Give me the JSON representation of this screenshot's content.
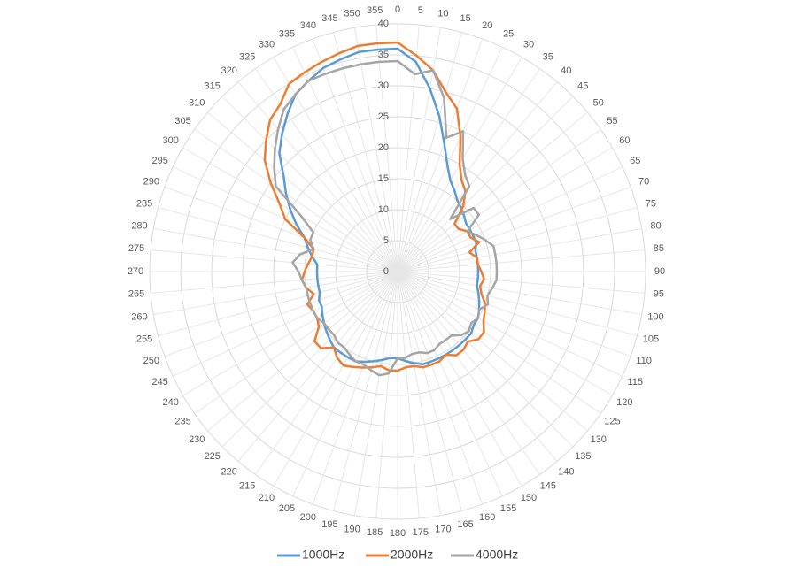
{
  "chart_data": {
    "type": "radar",
    "categories": [
      "0",
      "5",
      "10",
      "15",
      "20",
      "25",
      "30",
      "35",
      "40",
      "45",
      "50",
      "55",
      "60",
      "65",
      "70",
      "75",
      "80",
      "85",
      "90",
      "95",
      "100",
      "105",
      "110",
      "115",
      "120",
      "125",
      "130",
      "135",
      "140",
      "145",
      "150",
      "155",
      "160",
      "165",
      "170",
      "175",
      "180",
      "185",
      "190",
      "195",
      "200",
      "205",
      "210",
      "215",
      "220",
      "225",
      "230",
      "235",
      "240",
      "245",
      "250",
      "255",
      "260",
      "265",
      "270",
      "275",
      "280",
      "285",
      "290",
      "295",
      "300",
      "305",
      "310",
      "315",
      "320",
      "325",
      "330",
      "335",
      "340",
      "345",
      "350",
      "355"
    ],
    "series": [
      {
        "name": "1000Hz",
        "color": "#5b9bd5",
        "values": [
          36,
          34,
          30,
          26,
          22,
          19,
          17,
          16,
          15,
          14.5,
          14,
          13.5,
          13.5,
          13.5,
          13.5,
          13,
          13,
          13,
          13,
          13,
          13,
          13.5,
          14,
          14.5,
          15,
          15,
          15.5,
          15.5,
          15.5,
          15.5,
          15.5,
          15.5,
          15.5,
          15.5,
          15,
          14.5,
          14,
          14,
          14.5,
          15,
          15.5,
          16,
          16,
          16,
          16,
          15.5,
          15,
          14.5,
          14,
          13.5,
          13.5,
          13,
          13,
          13,
          13,
          13,
          14,
          15,
          16,
          18,
          20,
          22,
          24,
          27,
          29,
          31,
          33,
          34,
          35,
          35.5,
          36,
          36
        ]
      },
      {
        "name": "2000Hz",
        "color": "#ed7d31",
        "values": [
          37,
          35,
          33,
          30,
          28,
          24,
          20,
          18,
          17,
          15,
          12,
          12,
          13,
          13,
          14,
          12,
          13,
          13,
          13.5,
          14,
          13.5,
          14,
          15,
          15.5,
          16,
          17,
          17,
          16,
          16.5,
          16.5,
          15.5,
          16,
          16,
          16,
          15.5,
          15.5,
          16,
          16,
          15.5,
          16,
          16.5,
          17,
          17.5,
          17,
          16,
          17.5,
          17.5,
          15.5,
          15,
          15,
          15.5,
          14,
          15,
          15.5,
          15,
          14.5,
          14,
          14,
          16,
          20,
          22,
          25,
          28,
          30,
          32,
          33,
          35,
          35.5,
          36,
          36.5,
          37,
          37
        ]
      },
      {
        "name": "4000Hz",
        "color": "#a5a5a5",
        "values": [
          34,
          32,
          33,
          29,
          23,
          25,
          21,
          19,
          18,
          12,
          16,
          16,
          13,
          14,
          15,
          16,
          16,
          16,
          16,
          16,
          15.5,
          15,
          15.5,
          14.5,
          15,
          14.5,
          15,
          14.5,
          13.5,
          13.5,
          13.5,
          14,
          14,
          13.5,
          13.5,
          14,
          14,
          16.5,
          17,
          16.5,
          16,
          16,
          15.5,
          15,
          15,
          14.5,
          14.5,
          14.5,
          15,
          15,
          15,
          15,
          15,
          15.5,
          16,
          17,
          16,
          14,
          15,
          15,
          18,
          24,
          26,
          28,
          30,
          32,
          33,
          34,
          34,
          34,
          34,
          34
        ]
      }
    ],
    "ylim": [
      0,
      40
    ],
    "yticks": [
      0,
      5,
      10,
      15,
      20,
      25,
      30,
      35,
      40
    ],
    "grid": true,
    "legend": "bottom"
  }
}
